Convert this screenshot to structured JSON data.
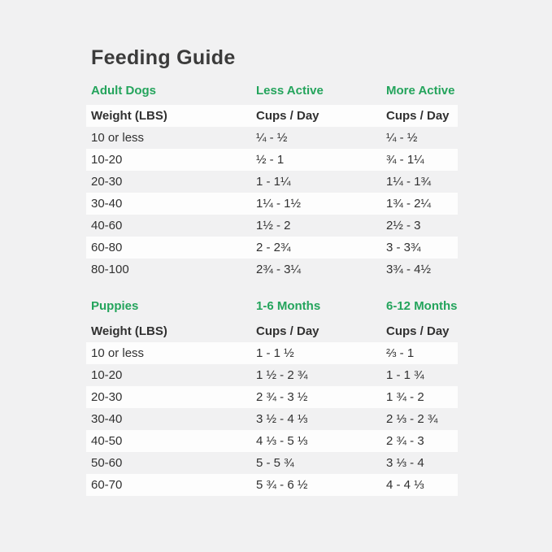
{
  "page": {
    "title": "Feeding Guide"
  },
  "colors": {
    "accent_green": "#24a45c",
    "page_background": "#f1f1f2",
    "row_highlight": "#fdfdfd",
    "title_text": "#3b3b3b",
    "body_text": "#313131"
  },
  "adult_table": {
    "section_title": "Adult Dogs",
    "column_headers": {
      "less_active": "Less Active",
      "more_active": "More Active"
    },
    "subheader": {
      "weight": "Weight (LBS)",
      "less_active": "Cups / Day",
      "more_active": "Cups / Day"
    },
    "rows": [
      {
        "weight": "10 or less",
        "less_active": "¼ - ½",
        "more_active": "¼ - ½"
      },
      {
        "weight": "10-20",
        "less_active": "½ - 1",
        "more_active": "¾ - 1¼"
      },
      {
        "weight": "20-30",
        "less_active": "1 - 1¼",
        "more_active": "1¼ - 1¾"
      },
      {
        "weight": "30-40",
        "less_active": "1¼ - 1½",
        "more_active": "1¾ - 2¼"
      },
      {
        "weight": "40-60",
        "less_active": "1½ - 2",
        "more_active": "2½ - 3"
      },
      {
        "weight": "60-80",
        "less_active": "2 - 2¾",
        "more_active": "3 - 3¾"
      },
      {
        "weight": "80-100",
        "less_active": "2¾ - 3¼",
        "more_active": "3¾ - 4½"
      }
    ]
  },
  "puppies_table": {
    "section_title": "Puppies",
    "column_headers": {
      "months_1_6": "1-6 Months",
      "months_6_12": "6-12 Months"
    },
    "subheader": {
      "weight": "Weight (LBS)",
      "months_1_6": "Cups / Day",
      "months_6_12": "Cups / Day"
    },
    "rows": [
      {
        "weight": "10 or less",
        "months_1_6": "1 - 1 ½",
        "months_6_12": "⅔ - 1"
      },
      {
        "weight": "10-20",
        "months_1_6": "1 ½ - 2 ¾",
        "months_6_12": "1 - 1 ¾"
      },
      {
        "weight": "20-30",
        "months_1_6": "2 ¾ - 3 ½",
        "months_6_12": "1 ¾ - 2"
      },
      {
        "weight": "30-40",
        "months_1_6": "3 ½ - 4 ⅓",
        "months_6_12": "2 ⅓ - 2 ¾"
      },
      {
        "weight": "40-50",
        "months_1_6": "4 ⅓ - 5 ⅓",
        "months_6_12": "2 ¾ - 3"
      },
      {
        "weight": "50-60",
        "months_1_6": "5 - 5 ¾",
        "months_6_12": "3 ⅓ - 4"
      },
      {
        "weight": "60-70",
        "months_1_6": "5 ¾ - 6 ½",
        "months_6_12": "4 - 4 ⅓"
      }
    ]
  }
}
